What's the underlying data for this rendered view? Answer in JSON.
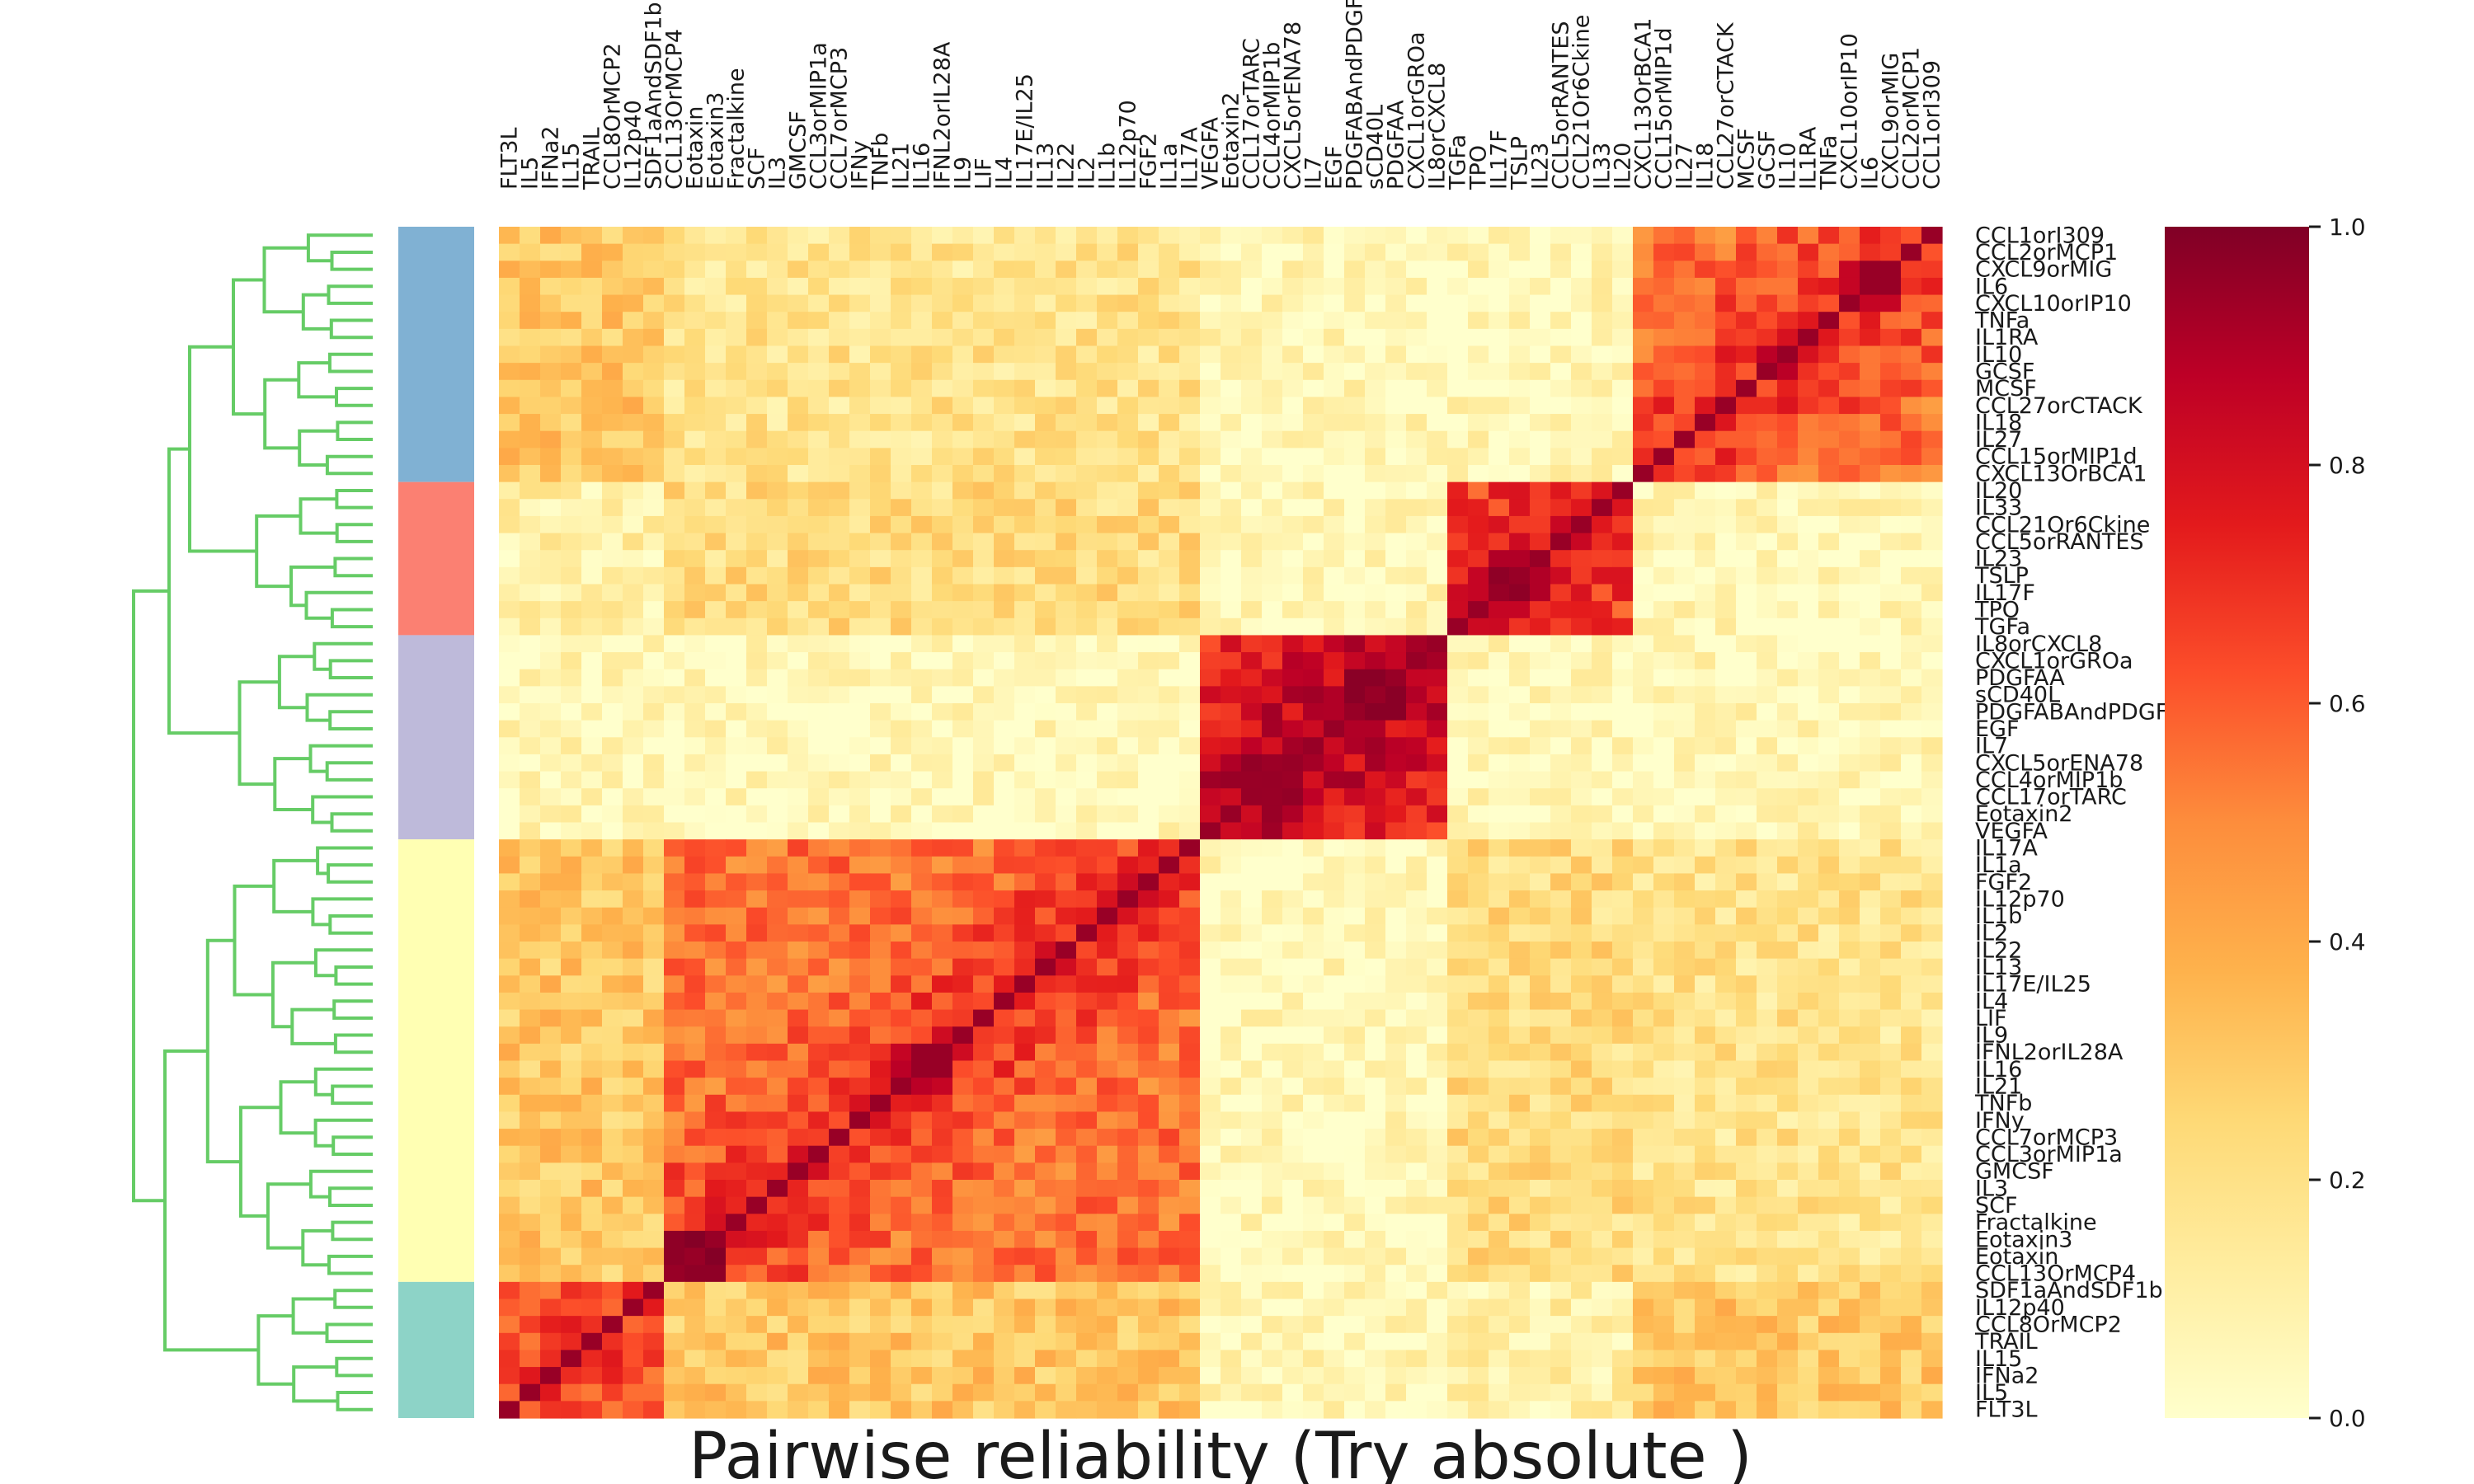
{
  "chart_data": {
    "type": "heatmap",
    "title": "Pairwise reliability (Try  absolute )",
    "order": [
      "CCL1orI309",
      "CCL2orMCP1",
      "CXCL9orMIG",
      "IL6",
      "CXCL10orIP10",
      "TNFa",
      "IL1RA",
      "IL10",
      "GCSF",
      "MCSF",
      "CCL27orCTACK",
      "IL18",
      "IL27",
      "CCL15orMIP1d",
      "CXCL13OrBCA1",
      "IL20",
      "IL33",
      "CCL21Or6Ckine",
      "CCL5orRANTES",
      "IL23",
      "TSLP",
      "IL17F",
      "TPO",
      "TGFa",
      "IL8orCXCL8",
      "CXCL1orGROa",
      "PDGFAA",
      "sCD40L",
      "PDGFABAndPDGFBB",
      "EGF",
      "IL7",
      "CXCL5orENA78",
      "CCL4orMIP1b",
      "CCL17orTARC",
      "Eotaxin2",
      "VEGFA",
      "IL17A",
      "IL1a",
      "FGF2",
      "IL12p70",
      "IL1b",
      "IL2",
      "IL22",
      "IL13",
      "IL17E/IL25",
      "IL4",
      "LIF",
      "IL9",
      "IFNL2orIL28A",
      "IL16",
      "IL21",
      "TNFb",
      "IFNy",
      "CCL7orMCP3",
      "CCL3orMIP1a",
      "GMCSF",
      "IL3",
      "SCF",
      "Fractalkine",
      "Eotaxin3",
      "Eotaxin",
      "CCL13OrMCP4",
      "SDF1aAndSDF1b",
      "IL12p40",
      "CCL8OrMCP2",
      "TRAIL",
      "IL15",
      "IFNa2",
      "IL5",
      "FLT3L"
    ],
    "row_labels": [
      "CCL1orI309",
      "CCL2orMCP1",
      "CXCL9orMIG",
      "IL6",
      "CXCL10orIP10",
      "TNFa",
      "IL1RA",
      "IL10",
      "GCSF",
      "MCSF",
      "CCL27orCTACK",
      "IL18",
      "IL27",
      "CCL15orMIP1d",
      "CXCL13OrBCA1",
      "IL20",
      "IL33",
      "CCL21Or6Ckine",
      "CCL5orRANTES",
      "IL23",
      "TSLP",
      "IL17F",
      "TPO",
      "TGFa",
      "IL8orCXCL8",
      "CXCL1orGROa",
      "PDGFAA",
      "sCD40L",
      "PDGFABAndPDGFBB",
      "EGF",
      "IL7",
      "CXCL5orENA78",
      "CCL4orMIP1b",
      "CCL17orTARC",
      "Eotaxin2",
      "VEGFA",
      "IL17A",
      "IL1a",
      "FGF2",
      "IL12p70",
      "IL1b",
      "IL2",
      "IL22",
      "IL13",
      "IL17E/IL25",
      "IL4",
      "LIF",
      "IL9",
      "IFNL2orIL28A",
      "IL16",
      "IL21",
      "TNFb",
      "IFNy",
      "CCL7orMCP3",
      "CCL3orMIP1a",
      "GMCSF",
      "IL3",
      "SCF",
      "Fractalkine",
      "Eotaxin3",
      "Eotaxin",
      "CCL13OrMCP4",
      "SDF1aAndSDF1b",
      "IL12p40",
      "CCL8OrMCP2",
      "TRAIL",
      "IL15",
      "IFNa2",
      "IL5",
      "FLT3L"
    ],
    "col_labels": [
      "FLT3L",
      "IL5",
      "IFNa2",
      "IL15",
      "TRAIL",
      "CCL8OrMCP2",
      "IL12p40",
      "SDF1aAndSDF1b",
      "CCL13OrMCP4",
      "Eotaxin",
      "Eotaxin3",
      "Fractalkine",
      "SCF",
      "IL3",
      "GMCSF",
      "CCL3orMIP1a",
      "CCL7orMCP3",
      "IFNy",
      "TNFb",
      "IL21",
      "IL16",
      "IFNL2orIL28A",
      "IL9",
      "LIF",
      "IL4",
      "IL17E/IL25",
      "IL13",
      "IL22",
      "IL2",
      "IL1b",
      "IL12p70",
      "FGF2",
      "IL1a",
      "IL17A",
      "VEGFA",
      "Eotaxin2",
      "CCL17orTARC",
      "CCL4orMIP1b",
      "CXCL5orENA78",
      "IL7",
      "EGF",
      "PDGFABAndPDGFBB",
      "sCD40L",
      "PDGFAA",
      "CXCL1orGROa",
      "IL8orCXCL8",
      "TGFa",
      "TPO",
      "IL17F",
      "TSLP",
      "IL23",
      "CCL5orRANTES",
      "CCL21Or6Ckine",
      "IL33",
      "IL20",
      "CXCL13OrBCA1",
      "CCL15orMIP1d",
      "IL27",
      "IL18",
      "CCL27orCTACK",
      "MCSF",
      "GCSF",
      "IL10",
      "IL1RA",
      "TNFa",
      "CXCL10orIP10",
      "IL6",
      "CXCL9orMIG",
      "CCL2orMCP1",
      "CCL1orI309"
    ],
    "clusters": [
      {
        "start": 0,
        "end": 15,
        "color": "#80b1d3"
      },
      {
        "start": 15,
        "end": 24,
        "color": "#fb8072"
      },
      {
        "start": 24,
        "end": 36,
        "color": "#bebada"
      },
      {
        "start": 36,
        "end": 62,
        "color": "#ffffb3"
      },
      {
        "start": 62,
        "end": 70,
        "color": "#8dd3c7"
      }
    ],
    "block_strength": [
      [
        0.55,
        0.05,
        0.05,
        0.18,
        0.3
      ],
      [
        0.05,
        0.62,
        0.04,
        0.22,
        0.1
      ],
      [
        0.05,
        0.04,
        0.72,
        0.04,
        0.05
      ],
      [
        0.18,
        0.22,
        0.04,
        0.55,
        0.3
      ],
      [
        0.3,
        0.1,
        0.05,
        0.3,
        0.52
      ]
    ],
    "strong_pairs": [
      {
        "a": "CXCL9orMIG",
        "b": "IL6",
        "value": 0.95
      },
      {
        "a": "CXCL9orMIG",
        "b": "CXCL10orIP10",
        "value": 0.85
      },
      {
        "a": "IL6",
        "b": "CXCL10orIP10",
        "value": 0.85
      },
      {
        "a": "IL10",
        "b": "GCSF",
        "value": 0.88
      },
      {
        "a": "TSLP",
        "b": "IL17F",
        "value": 0.97
      },
      {
        "a": "TSLP",
        "b": "IL23",
        "value": 0.9
      },
      {
        "a": "IL23",
        "b": "IL17F",
        "value": 0.9
      },
      {
        "a": "TPO",
        "b": "IL17F",
        "value": 0.85
      },
      {
        "a": "TPO",
        "b": "TSLP",
        "value": 0.85
      },
      {
        "a": "PDGFAA",
        "b": "sCD40L",
        "value": 0.98
      },
      {
        "a": "PDGFAA",
        "b": "PDGFABAndPDGFBB",
        "value": 0.98
      },
      {
        "a": "sCD40L",
        "b": "PDGFABAndPDGFBB",
        "value": 0.98
      },
      {
        "a": "EGF",
        "b": "PDGFABAndPDGFBB",
        "value": 0.9
      },
      {
        "a": "EGF",
        "b": "sCD40L",
        "value": 0.9
      },
      {
        "a": "CXCL1orGROa",
        "b": "PDGFAA",
        "value": 0.85
      },
      {
        "a": "IFNL2orIL28A",
        "b": "IL16",
        "value": 0.95
      },
      {
        "a": "IL16",
        "b": "IL21",
        "value": 0.88
      },
      {
        "a": "IFNL2orIL28A",
        "b": "IL21",
        "value": 0.85
      },
      {
        "a": "Eotaxin3",
        "b": "Eotaxin",
        "value": 0.99
      },
      {
        "a": "Eotaxin3",
        "b": "CCL13OrMCP4",
        "value": 0.97
      },
      {
        "a": "Eotaxin",
        "b": "CCL13OrMCP4",
        "value": 0.97
      }
    ],
    "colorbar": {
      "cmap": "YlOrRd",
      "range": [
        0.0,
        1.0
      ],
      "ticks": [
        "0.0",
        "0.2",
        "0.4",
        "0.6",
        "0.8",
        "1.0"
      ],
      "stops": [
        "#ffffcc",
        "#ffeda0",
        "#fed976",
        "#feb24c",
        "#fd8d3c",
        "#fc4e2a",
        "#e31a1c",
        "#bd0026",
        "#800026"
      ]
    },
    "dendrogram_color": "#66cc66",
    "grid": false
  }
}
